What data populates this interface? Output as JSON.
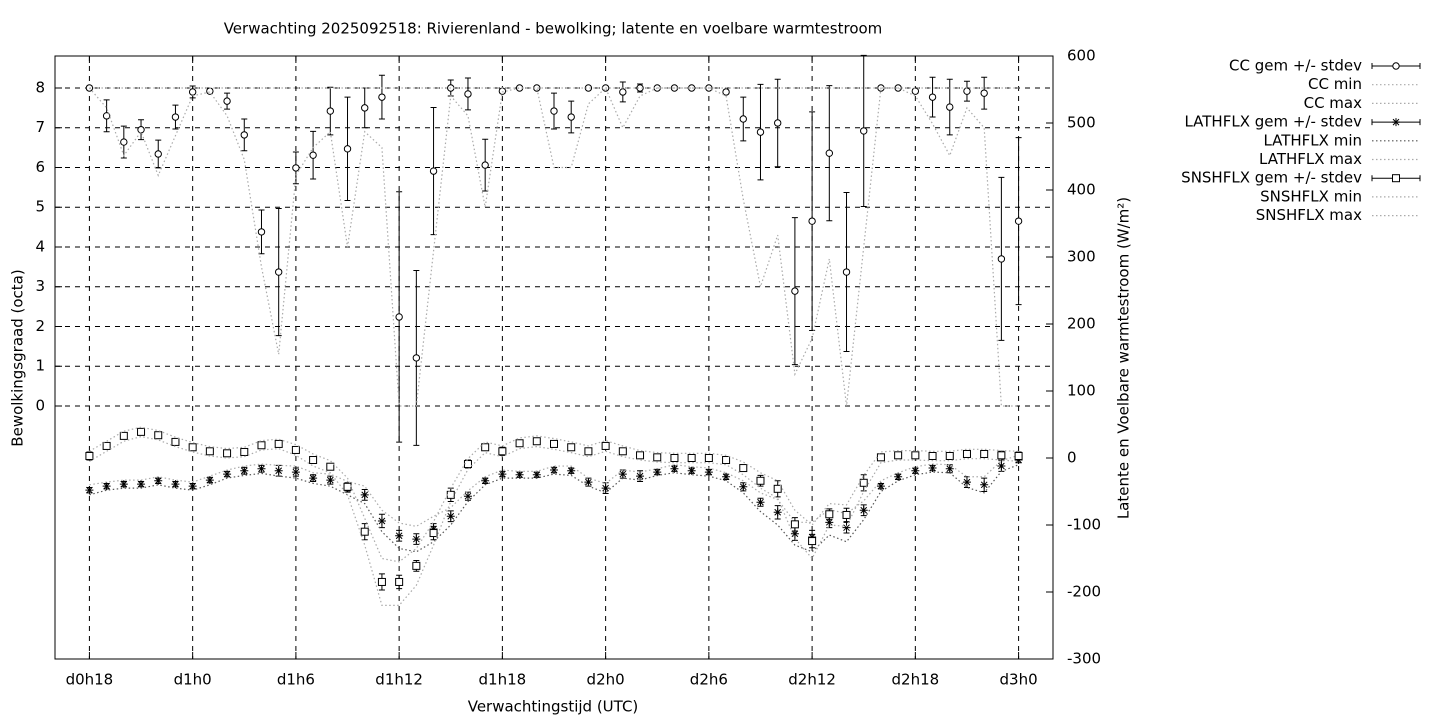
{
  "chart_data": {
    "type": "errorbars",
    "title": "Verwachting 2025092518: Rivierenland - bewolking; latente en voelbare warmtestroom",
    "xlabel": "Verwachtingstijd (UTC)",
    "ylabel": "Bewolkingsgraad (octa)",
    "y2label": "Latente en Voelbare warmtestroom (W/m²)",
    "xlim": [
      16,
      74
    ],
    "ylim": [
      -6.365,
      8.805
    ],
    "y2lim": [
      -300,
      600
    ],
    "xticks": [
      {
        "value": 18,
        "label": "d0h18"
      },
      {
        "value": 24,
        "label": "d1h0"
      },
      {
        "value": 30,
        "label": "d1h6"
      },
      {
        "value": 36,
        "label": "d1h12"
      },
      {
        "value": 42,
        "label": "d1h18"
      },
      {
        "value": 48,
        "label": "d2h0"
      },
      {
        "value": 54,
        "label": "d2h6"
      },
      {
        "value": 60,
        "label": "d2h12"
      },
      {
        "value": 66,
        "label": "d2h18"
      },
      {
        "value": 72,
        "label": "d3h0"
      }
    ],
    "yticks": [
      0,
      1,
      2,
      3,
      4,
      5,
      6,
      7,
      8
    ],
    "y2ticks": [
      -300,
      -200,
      -100,
      0,
      100,
      200,
      300,
      400,
      500,
      600
    ],
    "grid": true,
    "legend": "top-right",
    "x": [
      18,
      19,
      20,
      21,
      22,
      23,
      24,
      25,
      26,
      27,
      28,
      29,
      30,
      31,
      32,
      33,
      34,
      35,
      36,
      37,
      38,
      39,
      40,
      41,
      42,
      43,
      44,
      45,
      46,
      47,
      48,
      49,
      50,
      51,
      52,
      53,
      54,
      55,
      56,
      57,
      58,
      59,
      60,
      61,
      62,
      63,
      64,
      65,
      66,
      67,
      68,
      69,
      70,
      71,
      72
    ],
    "series": [
      {
        "name": "CC gem +/- stdev",
        "style": "errorbars",
        "point": "circle",
        "color": "#000000",
        "axis": "y",
        "values": [
          8,
          7.3,
          6.64,
          6.95,
          6.34,
          7.27,
          7.9,
          7.92,
          7.67,
          6.82,
          4.38,
          3.37,
          5.99,
          6.31,
          7.42,
          6.47,
          7.5,
          7.77,
          2.24,
          1.21,
          5.91,
          8,
          7.85,
          6.06,
          7.92,
          8,
          8,
          7.42,
          7.27,
          8,
          8,
          7.9,
          8,
          8,
          8,
          8,
          8,
          7.9,
          7.22,
          6.89,
          7.12,
          2.89,
          4.65,
          6.36,
          3.37,
          6.92,
          8,
          8,
          7.92,
          7.77,
          7.52,
          7.92,
          7.87,
          3.7,
          4.65
        ],
        "errors": [
          0.05,
          0.4,
          0.4,
          0.25,
          0.35,
          0.3,
          0.15,
          0.05,
          0.2,
          0.4,
          0.55,
          1.6,
          0.4,
          0.6,
          0.6,
          1.3,
          0.5,
          0.55,
          3.15,
          2.2,
          1.6,
          0.2,
          0.4,
          0.65,
          0.05,
          0,
          0,
          0.45,
          0.4,
          0,
          0,
          0.25,
          0.1,
          0,
          0,
          0,
          0,
          0.05,
          0.55,
          1.2,
          1.1,
          1.85,
          2.75,
          1.7,
          2.0,
          1.9,
          0,
          0,
          0.05,
          0.5,
          0.7,
          0.25,
          0.4,
          2.05,
          2.1
        ]
      },
      {
        "name": "CC min",
        "style": "line",
        "color": "#aaaaaa",
        "axis": "y",
        "values": [
          8,
          7.5,
          6.3,
          6.9,
          5.8,
          6.8,
          7.8,
          7.9,
          7.3,
          6.2,
          3.5,
          1.3,
          5.8,
          6.5,
          6.9,
          4,
          6.9,
          6.5,
          0,
          0,
          3.9,
          7.8,
          7.3,
          5,
          7.9,
          8,
          8,
          6,
          6,
          7.6,
          8,
          7,
          7.8,
          8,
          8,
          8,
          8,
          7.8,
          5.2,
          3,
          4.3,
          0.8,
          1.7,
          3.7,
          0,
          4,
          8,
          8,
          7.8,
          7.1,
          6.3,
          7.5,
          7,
          0,
          0
        ]
      },
      {
        "name": "CC max",
        "style": "line",
        "color": "#aaaaaa",
        "axis": "y",
        "values": [
          8,
          8,
          8,
          8,
          8,
          8,
          8,
          8,
          8,
          8,
          8,
          8,
          8,
          8,
          8,
          8,
          8,
          8,
          8,
          8,
          8,
          8,
          8,
          8,
          8,
          8,
          8,
          8,
          8,
          8,
          8,
          8,
          8,
          8,
          8,
          8,
          8,
          8,
          8,
          8,
          8,
          8,
          8,
          8,
          8,
          8,
          8,
          8,
          8,
          8,
          8,
          8,
          8,
          8,
          8
        ]
      },
      {
        "name": "LATHFLX gem +/- stdev",
        "style": "errorbars",
        "point": "star",
        "color": "#000000",
        "axis": "y2",
        "values": [
          -48,
          -42,
          -39,
          -39,
          -34,
          -39,
          -42,
          -33,
          -24,
          -19,
          -16,
          -19,
          -21,
          -30,
          -33,
          -45,
          -55,
          -94,
          -116,
          -121,
          -106,
          -87,
          -57,
          -34,
          -24,
          -25,
          -25,
          -18,
          -19,
          -36,
          -45,
          -24,
          -27,
          -21,
          -16,
          -19,
          -21,
          -28,
          -43,
          -66,
          -81,
          -113,
          -118,
          -96,
          -104,
          -78,
          -42,
          -28,
          -19,
          -15,
          -16,
          -36,
          -40,
          -12,
          -3
        ],
        "errors": [
          4,
          4,
          4,
          4,
          4,
          4,
          4,
          4,
          4,
          5,
          5,
          8,
          6,
          5,
          6,
          6,
          8,
          10,
          8,
          8,
          8,
          8,
          6,
          4,
          4,
          4,
          4,
          4,
          4,
          6,
          8,
          6,
          8,
          4,
          4,
          4,
          4,
          4,
          6,
          6,
          10,
          10,
          10,
          8,
          8,
          8,
          4,
          4,
          4,
          4,
          6,
          8,
          10,
          8,
          4
        ]
      },
      {
        "name": "LATHFLX min",
        "style": "line",
        "color": "#555555",
        "axis": "y2",
        "values": [
          -55,
          -48,
          -45,
          -45,
          -40,
          -45,
          -48,
          -40,
          -30,
          -26,
          -23,
          -27,
          -30,
          -38,
          -42,
          -55,
          -68,
          -110,
          -135,
          -140,
          -125,
          -100,
          -65,
          -40,
          -30,
          -30,
          -30,
          -24,
          -26,
          -42,
          -52,
          -30,
          -33,
          -26,
          -22,
          -25,
          -27,
          -34,
          -52,
          -80,
          -100,
          -130,
          -140,
          -115,
          -125,
          -92,
          -50,
          -34,
          -25,
          -21,
          -22,
          -44,
          -52,
          -20,
          -10
        ]
      },
      {
        "name": "LATHFLX max",
        "style": "line",
        "color": "#aaaaaa",
        "axis": "y2",
        "values": [
          -40,
          -36,
          -33,
          -33,
          -28,
          -33,
          -36,
          -27,
          -18,
          -12,
          -9,
          -11,
          -12,
          -22,
          -24,
          -35,
          -42,
          -78,
          -97,
          -102,
          -87,
          -74,
          -49,
          -28,
          -18,
          -20,
          -20,
          -12,
          -12,
          -30,
          -38,
          -18,
          -21,
          -16,
          -10,
          -13,
          -15,
          -22,
          -34,
          -52,
          -62,
          -96,
          -96,
          -77,
          -83,
          -64,
          -34,
          -22,
          -13,
          -9,
          -10,
          -28,
          -28,
          -4,
          4
        ]
      },
      {
        "name": "SNSHFLX gem +/- stdev",
        "style": "errorbars",
        "point": "square",
        "color": "#000000",
        "axis": "y2",
        "values": [
          3,
          18,
          33,
          39,
          34,
          24,
          16,
          10,
          7,
          9,
          19,
          21,
          12,
          -3,
          -13,
          -43,
          -110,
          -185,
          -185,
          -161,
          -112,
          -55,
          -9,
          16,
          10,
          22,
          25,
          21,
          16,
          10,
          18,
          10,
          4,
          1,
          0,
          0,
          0,
          -3,
          -15,
          -34,
          -46,
          -99,
          -124,
          -84,
          -85,
          -37,
          1,
          4,
          4,
          3,
          3,
          6,
          6,
          4,
          3
        ],
        "errors": [
          6,
          4,
          4,
          4,
          4,
          4,
          4,
          4,
          4,
          4,
          4,
          4,
          4,
          4,
          4,
          6,
          12,
          12,
          10,
          8,
          10,
          10,
          6,
          4,
          6,
          4,
          4,
          4,
          4,
          4,
          4,
          4,
          4,
          4,
          4,
          4,
          4,
          4,
          4,
          8,
          12,
          10,
          10,
          8,
          10,
          12,
          4,
          4,
          4,
          4,
          4,
          4,
          4,
          6,
          6
        ]
      },
      {
        "name": "SNSHFLX min",
        "style": "line",
        "color": "#aaaaaa",
        "axis": "y2",
        "values": [
          -5,
          10,
          25,
          32,
          27,
          17,
          9,
          3,
          0,
          2,
          12,
          14,
          4,
          -12,
          -22,
          -55,
          -130,
          -220,
          -220,
          -190,
          -130,
          -65,
          -17,
          8,
          2,
          14,
          17,
          13,
          8,
          2,
          10,
          2,
          -3,
          -6,
          -7,
          -7,
          -7,
          -10,
          -25,
          -45,
          -60,
          -120,
          -150,
          -100,
          -102,
          -50,
          -7,
          -3,
          -3,
          -4,
          -4,
          -1,
          -1,
          -3,
          -5
        ]
      },
      {
        "name": "SNSHFLX max",
        "style": "line",
        "color": "#aaaaaa",
        "axis": "y2",
        "values": [
          10,
          25,
          40,
          46,
          41,
          31,
          23,
          17,
          14,
          16,
          26,
          28,
          20,
          6,
          -4,
          -30,
          -90,
          -150,
          -155,
          -135,
          -95,
          -45,
          -1,
          24,
          18,
          30,
          33,
          29,
          24,
          18,
          26,
          18,
          11,
          8,
          7,
          7,
          7,
          4,
          -6,
          -22,
          -34,
          -78,
          -100,
          -68,
          -70,
          -26,
          9,
          11,
          11,
          10,
          10,
          13,
          13,
          11,
          10
        ]
      }
    ]
  }
}
